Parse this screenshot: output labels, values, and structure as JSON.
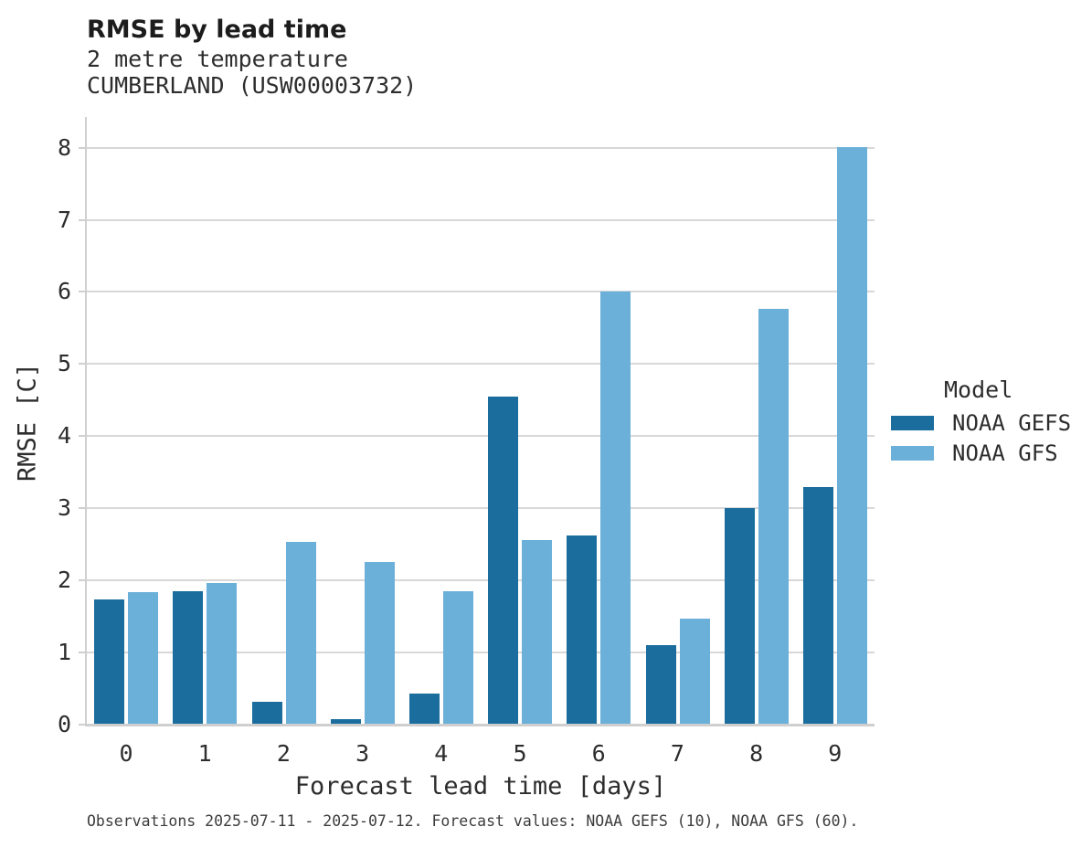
{
  "header": {
    "title": "RMSE by lead time",
    "subtitle_line1": "2 metre temperature",
    "subtitle_line2": "CUMBERLAND (USW00003732)"
  },
  "legend": {
    "title": "Model",
    "items": [
      {
        "label": "NOAA GEFS",
        "color": "#1a6d9c"
      },
      {
        "label": "NOAA GFS",
        "color": "#6bb0d9"
      }
    ]
  },
  "footer": {
    "caption": "Observations 2025-07-11 - 2025-07-12. Forecast values: NOAA GEFS (10), NOAA GFS (60)."
  },
  "chart_data": {
    "type": "bar",
    "title": "RMSE by lead time",
    "subtitle": "2 metre temperature | CUMBERLAND (USW00003732)",
    "categories": [
      "0",
      "1",
      "2",
      "3",
      "4",
      "5",
      "6",
      "7",
      "8",
      "9"
    ],
    "series": [
      {
        "name": "NOAA GEFS",
        "color": "#1a6d9c",
        "values": [
          1.73,
          1.85,
          0.32,
          0.08,
          0.43,
          4.55,
          2.62,
          1.1,
          3.0,
          3.29
        ]
      },
      {
        "name": "NOAA GFS",
        "color": "#6bb0d9",
        "values": [
          1.84,
          1.96,
          2.54,
          2.25,
          1.85,
          2.56,
          6.01,
          1.47,
          5.76,
          8.01
        ]
      }
    ],
    "xlabel": "Forecast lead time [days]",
    "ylabel": "RMSE [C]",
    "ylim": [
      0,
      8.4
    ],
    "yticks": [
      0,
      1,
      2,
      3,
      4,
      5,
      6,
      7,
      8
    ],
    "grid": true,
    "legend_title": "Model",
    "legend_position": "right"
  },
  "style": {
    "grid_color": "#d8d8d8",
    "spine_color": "#cfcfcf"
  }
}
